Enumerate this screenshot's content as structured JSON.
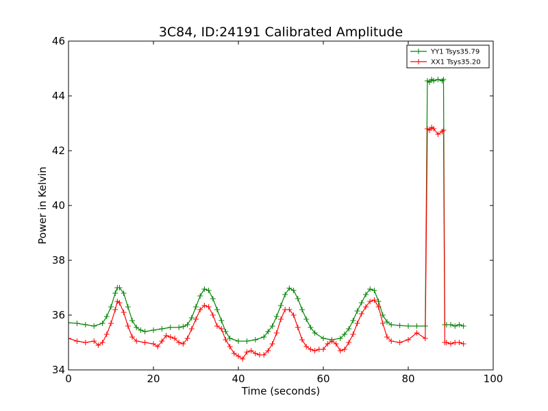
{
  "chart_data": {
    "type": "line",
    "title": "3C84, ID:24191 Calibrated Amplitude",
    "xlabel": "Time (seconds)",
    "ylabel": "Power in Kelvin",
    "xlim": [
      0,
      100
    ],
    "ylim": [
      34,
      46
    ],
    "xticks": [
      0,
      20,
      40,
      60,
      80,
      100
    ],
    "yticks": [
      34,
      36,
      38,
      40,
      42,
      44,
      46
    ],
    "grid": false,
    "legend_position": "top-right",
    "marker": "+",
    "series": [
      {
        "name": "YY1 Tsys35.79",
        "color": "#008000",
        "x": [
          0,
          2,
          4,
          6,
          8,
          9,
          10,
          11,
          11.5,
          12,
          13,
          14,
          15,
          16,
          17,
          18,
          20,
          22,
          24,
          26,
          27,
          28,
          29,
          30,
          31,
          32,
          33,
          34,
          35,
          36,
          37,
          38,
          40,
          42,
          44,
          46,
          47,
          48,
          49,
          50,
          51,
          52,
          53,
          54,
          55,
          56,
          57,
          58,
          60,
          62,
          64,
          65,
          66,
          67,
          68,
          69,
          70,
          71,
          72,
          73,
          74,
          75,
          76,
          78,
          80,
          82,
          84,
          84.5,
          85,
          85.5,
          86,
          87,
          88,
          88.3,
          88.6,
          89,
          90,
          91,
          92,
          93
        ],
        "values": [
          35.72,
          35.7,
          35.65,
          35.6,
          35.7,
          35.95,
          36.3,
          36.8,
          37.0,
          37.0,
          36.8,
          36.3,
          35.8,
          35.55,
          35.45,
          35.4,
          35.45,
          35.5,
          35.55,
          35.55,
          35.58,
          35.65,
          35.9,
          36.3,
          36.7,
          36.95,
          36.9,
          36.6,
          36.2,
          35.8,
          35.4,
          35.15,
          35.05,
          35.05,
          35.1,
          35.2,
          35.4,
          35.6,
          35.95,
          36.35,
          36.75,
          36.98,
          36.9,
          36.6,
          36.2,
          35.85,
          35.55,
          35.35,
          35.15,
          35.1,
          35.15,
          35.3,
          35.5,
          35.8,
          36.15,
          36.45,
          36.75,
          36.95,
          36.9,
          36.5,
          36.0,
          35.75,
          35.65,
          35.62,
          35.6,
          35.6,
          35.6,
          44.55,
          44.5,
          44.6,
          44.55,
          44.6,
          44.55,
          44.6,
          35.65,
          35.65,
          35.65,
          35.6,
          35.65,
          35.6
        ]
      },
      {
        "name": "XX1 Tsys35.20",
        "color": "#ff0000",
        "x": [
          0,
          2,
          4,
          6,
          7,
          8,
          9,
          10,
          11,
          11.5,
          12,
          13,
          14,
          15,
          16,
          18,
          20,
          21,
          22,
          23,
          24,
          25,
          26,
          27,
          28,
          29,
          30,
          31,
          32,
          33,
          34,
          35,
          36,
          37,
          38,
          39,
          40,
          41,
          42,
          43,
          44,
          45,
          46,
          47,
          48,
          49,
          50,
          51,
          52,
          53,
          54,
          55,
          56,
          57,
          58,
          59,
          60,
          61,
          62,
          63,
          64,
          65,
          66,
          67,
          68,
          69,
          70,
          71,
          72,
          73,
          74,
          75,
          76,
          78,
          80,
          82,
          84,
          84.5,
          85,
          85.5,
          86,
          87,
          88,
          88.3,
          88.6,
          89,
          90,
          91,
          92,
          93
        ],
        "values": [
          35.15,
          35.05,
          35.0,
          35.05,
          34.9,
          35.0,
          35.3,
          35.7,
          36.2,
          36.5,
          36.45,
          36.1,
          35.6,
          35.2,
          35.05,
          35.0,
          34.95,
          34.85,
          35.05,
          35.25,
          35.2,
          35.15,
          35.0,
          34.95,
          35.15,
          35.5,
          35.85,
          36.2,
          36.35,
          36.3,
          36.0,
          35.6,
          35.5,
          35.1,
          34.85,
          34.6,
          34.5,
          34.4,
          34.65,
          34.7,
          34.6,
          34.55,
          34.55,
          34.7,
          34.95,
          35.35,
          35.85,
          36.2,
          36.2,
          36.0,
          35.55,
          35.1,
          34.85,
          34.75,
          34.7,
          34.75,
          34.75,
          34.95,
          35.05,
          34.95,
          34.7,
          34.75,
          35.0,
          35.3,
          35.7,
          36.05,
          36.3,
          36.5,
          36.55,
          36.3,
          35.7,
          35.2,
          35.05,
          35.0,
          35.1,
          35.35,
          35.15,
          42.8,
          42.75,
          42.85,
          42.8,
          42.6,
          42.7,
          42.75,
          35.0,
          35.0,
          34.95,
          35.0,
          35.0,
          34.95
        ]
      }
    ]
  }
}
